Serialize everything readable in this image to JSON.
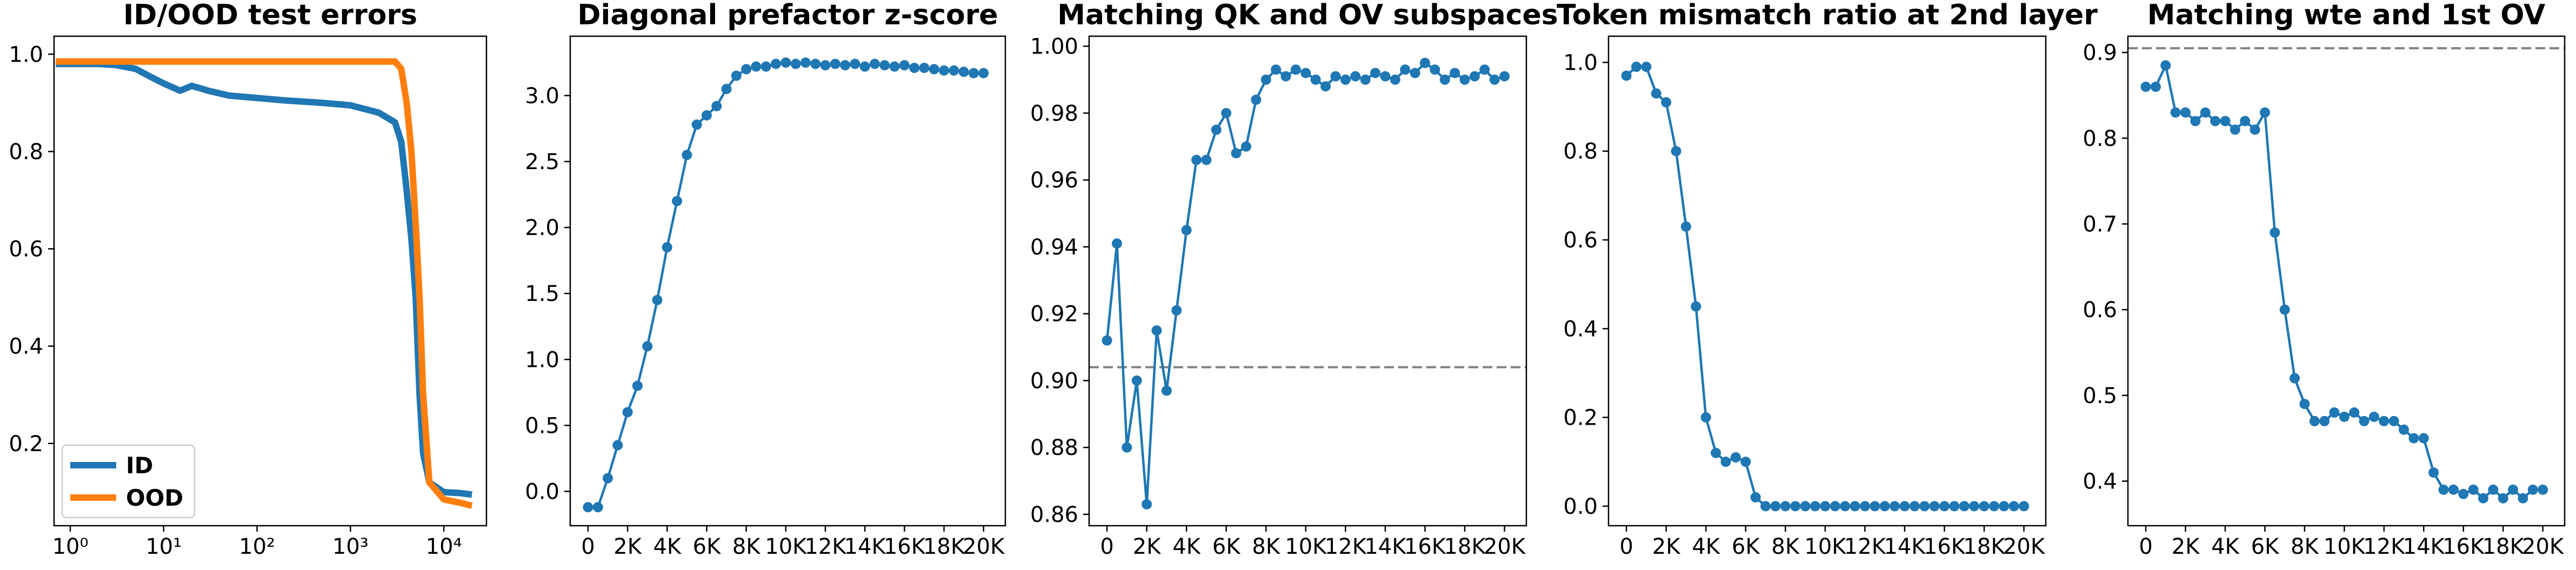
{
  "chart_data": [
    {
      "type": "line",
      "title": "ID/OOD test errors",
      "xscale": "log",
      "x": [
        0.7,
        1,
        2,
        3,
        5,
        7,
        10,
        15,
        20,
        30,
        50,
        100,
        200,
        500,
        1000,
        2000,
        3000,
        3500,
        4000,
        4500,
        5000,
        5500,
        6000,
        7000,
        10000,
        15000,
        20000
      ],
      "series": [
        {
          "name": "ID",
          "color": "#1f77b4",
          "values": [
            0.98,
            0.98,
            0.98,
            0.978,
            0.97,
            0.955,
            0.94,
            0.925,
            0.935,
            0.925,
            0.915,
            0.91,
            0.905,
            0.9,
            0.895,
            0.88,
            0.86,
            0.82,
            0.72,
            0.62,
            0.5,
            0.3,
            0.18,
            0.12,
            0.1,
            0.098,
            0.095
          ]
        },
        {
          "name": "OOD",
          "color": "#ff7f0e",
          "values": [
            0.985,
            0.985,
            0.985,
            0.985,
            0.985,
            0.985,
            0.985,
            0.985,
            0.985,
            0.985,
            0.985,
            0.985,
            0.985,
            0.985,
            0.985,
            0.985,
            0.985,
            0.97,
            0.9,
            0.8,
            0.65,
            0.5,
            0.3,
            0.12,
            0.085,
            0.078,
            0.072
          ]
        }
      ],
      "legend": "lower left",
      "xlim": [
        0.67,
        28600
      ],
      "xticks": [
        {
          "value": 1,
          "label": "10⁰"
        },
        {
          "value": 10,
          "label": "10¹"
        },
        {
          "value": 100,
          "label": "10²"
        },
        {
          "value": 1000,
          "label": "10³"
        },
        {
          "value": 10000,
          "label": "10⁴"
        }
      ],
      "ylim": [
        0.031,
        1.037
      ],
      "yticks": [
        0.2,
        0.4,
        0.6,
        0.8,
        {
          "value": 1.0,
          "label": "1.0"
        }
      ]
    },
    {
      "type": "line",
      "title": "Diagonal prefactor z-score",
      "marker": true,
      "color": "#1f77b4",
      "x": [
        0,
        500,
        1000,
        1500,
        2000,
        2500,
        3000,
        3500,
        4000,
        4500,
        5000,
        5500,
        6000,
        6500,
        7000,
        7500,
        8000,
        8500,
        9000,
        9500,
        10000,
        10500,
        11000,
        11500,
        12000,
        12500,
        13000,
        13500,
        14000,
        14500,
        15000,
        15500,
        16000,
        16500,
        17000,
        17500,
        18000,
        18500,
        19000,
        19500,
        20000
      ],
      "values": [
        -0.12,
        -0.12,
        0.1,
        0.35,
        0.6,
        0.8,
        1.1,
        1.45,
        1.85,
        2.2,
        2.55,
        2.78,
        2.85,
        2.92,
        3.05,
        3.15,
        3.2,
        3.22,
        3.22,
        3.24,
        3.25,
        3.24,
        3.25,
        3.24,
        3.23,
        3.24,
        3.23,
        3.24,
        3.22,
        3.24,
        3.23,
        3.22,
        3.23,
        3.21,
        3.21,
        3.2,
        3.19,
        3.19,
        3.18,
        3.17,
        3.17
      ],
      "xlim": [
        -900,
        21100
      ],
      "xticks": [
        0,
        {
          "value": 2000,
          "label": "2K"
        },
        {
          "value": 4000,
          "label": "4K"
        },
        {
          "value": 6000,
          "label": "6K"
        },
        {
          "value": 8000,
          "label": "8K"
        },
        {
          "value": 10000,
          "label": "10K"
        },
        {
          "value": 12000,
          "label": "12K"
        },
        {
          "value": 14000,
          "label": "14K"
        },
        {
          "value": 16000,
          "label": "16K"
        },
        {
          "value": 18000,
          "label": "18K"
        },
        {
          "value": 20000,
          "label": "20K"
        }
      ],
      "ylim": [
        -0.26,
        3.45
      ],
      "yticks": [
        {
          "value": 0,
          "label": "0.0"
        },
        0.5,
        {
          "value": 1,
          "label": "1.0"
        },
        1.5,
        {
          "value": 2,
          "label": "2.0"
        },
        2.5,
        {
          "value": 3,
          "label": "3.0"
        }
      ]
    },
    {
      "type": "line",
      "title": "Matching QK and OV subspaces",
      "marker": true,
      "color": "#1f77b4",
      "hline": 0.904,
      "x": [
        0,
        500,
        1000,
        1500,
        2000,
        2500,
        3000,
        3500,
        4000,
        4500,
        5000,
        5500,
        6000,
        6500,
        7000,
        7500,
        8000,
        8500,
        9000,
        9500,
        10000,
        10500,
        11000,
        11500,
        12000,
        12500,
        13000,
        13500,
        14000,
        14500,
        15000,
        15500,
        16000,
        16500,
        17000,
        17500,
        18000,
        18500,
        19000,
        19500,
        20000
      ],
      "values": [
        0.912,
        0.941,
        0.88,
        0.9,
        0.863,
        0.915,
        0.897,
        0.921,
        0.945,
        0.966,
        0.966,
        0.975,
        0.98,
        0.968,
        0.97,
        0.984,
        0.99,
        0.993,
        0.991,
        0.993,
        0.992,
        0.99,
        0.988,
        0.991,
        0.99,
        0.991,
        0.99,
        0.992,
        0.991,
        0.99,
        0.993,
        0.992,
        0.995,
        0.993,
        0.99,
        0.992,
        0.99,
        0.991,
        0.993,
        0.99,
        0.991
      ],
      "xlim": [
        -900,
        21100
      ],
      "xticks": [
        0,
        {
          "value": 2000,
          "label": "2K"
        },
        {
          "value": 4000,
          "label": "4K"
        },
        {
          "value": 6000,
          "label": "6K"
        },
        {
          "value": 8000,
          "label": "8K"
        },
        {
          "value": 10000,
          "label": "10K"
        },
        {
          "value": 12000,
          "label": "12K"
        },
        {
          "value": 14000,
          "label": "14K"
        },
        {
          "value": 16000,
          "label": "16K"
        },
        {
          "value": 18000,
          "label": "18K"
        },
        {
          "value": 20000,
          "label": "20K"
        }
      ],
      "ylim": [
        0.8566,
        1.003
      ],
      "yticks": [
        0.86,
        0.88,
        {
          "value": 0.9,
          "label": "0.90"
        },
        0.92,
        0.94,
        0.96,
        0.98,
        {
          "value": 1,
          "label": "1.00"
        }
      ]
    },
    {
      "type": "line",
      "title": "Token mismatch ratio at 2nd layer",
      "marker": true,
      "color": "#1f77b4",
      "x": [
        0,
        500,
        1000,
        1500,
        2000,
        2500,
        3000,
        3500,
        4000,
        4500,
        5000,
        5500,
        6000,
        6500,
        7000,
        7500,
        8000,
        8500,
        9000,
        9500,
        10000,
        10500,
        11000,
        11500,
        12000,
        12500,
        13000,
        13500,
        14000,
        14500,
        15000,
        15500,
        16000,
        16500,
        17000,
        17500,
        18000,
        18500,
        19000,
        19500,
        20000
      ],
      "values": [
        0.97,
        0.99,
        0.99,
        0.93,
        0.91,
        0.8,
        0.63,
        0.45,
        0.2,
        0.12,
        0.1,
        0.11,
        0.1,
        0.02,
        0,
        0,
        0,
        0,
        0,
        0,
        0,
        0,
        0,
        0,
        0,
        0,
        0,
        0,
        0,
        0,
        0,
        0,
        0,
        0,
        0,
        0,
        0,
        0,
        0,
        0,
        0
      ],
      "xlim": [
        -900,
        21100
      ],
      "xticks": [
        0,
        {
          "value": 2000,
          "label": "2K"
        },
        {
          "value": 4000,
          "label": "4K"
        },
        {
          "value": 6000,
          "label": "6K"
        },
        {
          "value": 8000,
          "label": "8K"
        },
        {
          "value": 10000,
          "label": "10K"
        },
        {
          "value": 12000,
          "label": "12K"
        },
        {
          "value": 14000,
          "label": "14K"
        },
        {
          "value": 16000,
          "label": "16K"
        },
        {
          "value": 18000,
          "label": "18K"
        },
        {
          "value": 20000,
          "label": "20K"
        }
      ],
      "ylim": [
        -0.044,
        1.059
      ],
      "yticks": [
        {
          "value": 0,
          "label": "0.0"
        },
        0.2,
        0.4,
        0.6,
        0.8,
        {
          "value": 1,
          "label": "1.0"
        }
      ]
    },
    {
      "type": "line",
      "title": "Matching wte and 1st OV",
      "marker": true,
      "color": "#1f77b4",
      "hline": 0.905,
      "x": [
        0,
        500,
        1000,
        1500,
        2000,
        2500,
        3000,
        3500,
        4000,
        4500,
        5000,
        5500,
        6000,
        6500,
        7000,
        7500,
        8000,
        8500,
        9000,
        9500,
        10000,
        10500,
        11000,
        11500,
        12000,
        12500,
        13000,
        13500,
        14000,
        14500,
        15000,
        15500,
        16000,
        16500,
        17000,
        17500,
        18000,
        18500,
        19000,
        19500,
        20000
      ],
      "values": [
        0.86,
        0.86,
        0.885,
        0.83,
        0.83,
        0.82,
        0.83,
        0.82,
        0.82,
        0.81,
        0.82,
        0.81,
        0.83,
        0.69,
        0.6,
        0.52,
        0.49,
        0.47,
        0.47,
        0.48,
        0.475,
        0.48,
        0.47,
        0.475,
        0.47,
        0.47,
        0.46,
        0.45,
        0.45,
        0.41,
        0.39,
        0.39,
        0.385,
        0.39,
        0.38,
        0.39,
        0.38,
        0.39,
        0.38,
        0.39,
        0.39
      ],
      "xlim": [
        -900,
        21100
      ],
      "xticks": [
        0,
        {
          "value": 2000,
          "label": "2K"
        },
        {
          "value": 4000,
          "label": "4K"
        },
        {
          "value": 6000,
          "label": "6K"
        },
        {
          "value": 8000,
          "label": "8K"
        },
        {
          "value": 10000,
          "label": "10K"
        },
        {
          "value": 12000,
          "label": "12K"
        },
        {
          "value": 14000,
          "label": "14K"
        },
        {
          "value": 16000,
          "label": "16K"
        },
        {
          "value": 18000,
          "label": "18K"
        },
        {
          "value": 20000,
          "label": "20K"
        }
      ],
      "ylim": [
        0.348,
        0.919
      ],
      "yticks": [
        0.4,
        0.5,
        0.6,
        0.7,
        0.8,
        0.9
      ]
    }
  ]
}
